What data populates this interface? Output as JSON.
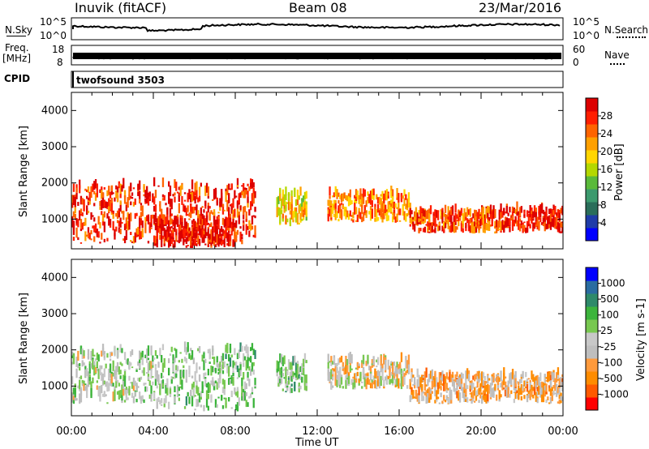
{
  "header": {
    "station": "Inuvik (fitACF)",
    "beam": "Beam 08",
    "date": "23/Mar/2016"
  },
  "top_panels": {
    "nsky_label": "N.Sky",
    "nsky_ticks": [
      "10^5",
      "10^0"
    ],
    "nsearch_label": "N.Search",
    "nsearch_ticks": [
      "10^5",
      "10^0"
    ],
    "freq_label_1": "Freq.",
    "freq_label_2": "[MHz]",
    "freq_ticks": [
      "18",
      "8"
    ],
    "nave_label": "Nave",
    "nave_ticks": [
      "60",
      "0"
    ],
    "cpid_label": "CPID",
    "cpid_value": "twofsound 3503"
  },
  "x_axis": {
    "label": "Time UT",
    "ticks": [
      "00:00",
      "04:00",
      "08:00",
      "12:00",
      "16:00",
      "20:00",
      "00:00"
    ]
  },
  "colors": {
    "power_scale": [
      "#0000ff",
      "#1f3ca8",
      "#2a6e5a",
      "#3c9a6e",
      "#5aba3a",
      "#b4d800",
      "#ffd600",
      "#ffa000",
      "#ff6400",
      "#ff1e00",
      "#dc0000"
    ],
    "velocity_scale": [
      "#ff0000",
      "#ff5a00",
      "#ff8c00",
      "#ff9a3c",
      "#bebebe",
      "#c8c8c8",
      "#78c850",
      "#3cb43c",
      "#2e8a6a",
      "#2a6ca0",
      "#0000ff"
    ]
  },
  "chart_data": [
    {
      "type": "heatmap",
      "title": "Power",
      "xlabel": "Time UT",
      "ylabel": "Slant Range [km]",
      "xlim": [
        "00:00",
        "24:00"
      ],
      "ylim": [
        180,
        4500
      ],
      "y_ticks": [
        "1000",
        "2000",
        "3000",
        "4000"
      ],
      "colorbar_label": "Power [dB]",
      "colorbar_ticks": [
        "28",
        "24",
        "20",
        "16",
        "12",
        "8",
        "4"
      ],
      "colorbar_range": [
        0,
        30
      ],
      "echo_regions": [
        {
          "t_start": 0.0,
          "t_end": 9.0,
          "range_min": 300,
          "range_max": 2200,
          "power": 26
        },
        {
          "t_start": 4.0,
          "t_end": 8.0,
          "range_min": 200,
          "range_max": 1000,
          "power": 28
        },
        {
          "t_start": 10.0,
          "t_end": 11.5,
          "range_min": 800,
          "range_max": 1800,
          "power": 18
        },
        {
          "t_start": 12.5,
          "t_end": 16.5,
          "range_min": 900,
          "range_max": 1800,
          "power": 22
        },
        {
          "t_start": 16.5,
          "t_end": 21.0,
          "range_min": 600,
          "range_max": 1300,
          "power": 24
        },
        {
          "t_start": 21.0,
          "t_end": 24.0,
          "range_min": 600,
          "range_max": 1300,
          "power": 27
        }
      ]
    },
    {
      "type": "heatmap",
      "title": "Velocity",
      "xlabel": "Time UT",
      "ylabel": "Slant Range [km]",
      "xlim": [
        "00:00",
        "24:00"
      ],
      "ylim": [
        180,
        4500
      ],
      "y_ticks": [
        "1000",
        "2000",
        "3000",
        "4000"
      ],
      "colorbar_label": "Velocity [m s-1]",
      "colorbar_ticks": [
        "1000",
        "500",
        "100",
        "25",
        "-25",
        "-100",
        "-500",
        "-1000"
      ],
      "colorbar_range": [
        -1200,
        1200
      ],
      "echo_regions": [
        {
          "t_start": 0.0,
          "t_end": 4.0,
          "range_min": 500,
          "range_max": 2200,
          "velocity": 50
        },
        {
          "t_start": 4.0,
          "t_end": 9.0,
          "range_min": 300,
          "range_max": 2300,
          "velocity": 150
        },
        {
          "t_start": 10.0,
          "t_end": 11.5,
          "range_min": 800,
          "range_max": 1800,
          "velocity": 200
        },
        {
          "t_start": 12.5,
          "t_end": 16.5,
          "range_min": 900,
          "range_max": 1800,
          "velocity": -200
        },
        {
          "t_start": 16.5,
          "t_end": 24.0,
          "range_min": 500,
          "range_max": 1400,
          "velocity": -400
        }
      ]
    }
  ]
}
